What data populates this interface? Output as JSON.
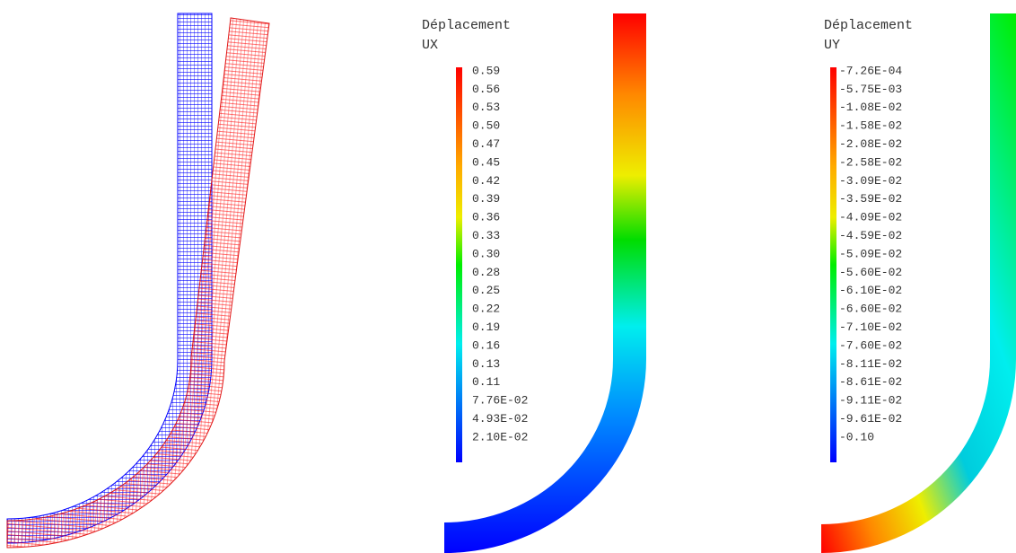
{
  "legends": [
    {
      "title": "Déplacement",
      "component": "UX",
      "levels": [
        "0.59",
        "0.56",
        "0.53",
        "0.50",
        "0.47",
        "0.45",
        "0.42",
        "0.39",
        "0.36",
        "0.33",
        "0.30",
        "0.28",
        "0.25",
        "0.22",
        "0.19",
        "0.16",
        "0.13",
        "0.11",
        "7.76E-02",
        "4.93E-02",
        "2.10E-02"
      ]
    },
    {
      "title": "Déplacement",
      "component": "UY",
      "levels": [
        "-7.26E-04",
        "-5.75E-03",
        "-1.08E-02",
        "-1.58E-02",
        "-2.08E-02",
        "-2.58E-02",
        "-3.09E-02",
        "-3.59E-02",
        "-4.09E-02",
        "-4.59E-02",
        "-5.09E-02",
        "-5.60E-02",
        "-6.10E-02",
        "-6.60E-02",
        "-7.10E-02",
        "-7.60E-02",
        "-8.11E-02",
        "-8.61E-02",
        "-9.11E-02",
        "-9.61E-02",
        "-0.10"
      ]
    }
  ]
}
